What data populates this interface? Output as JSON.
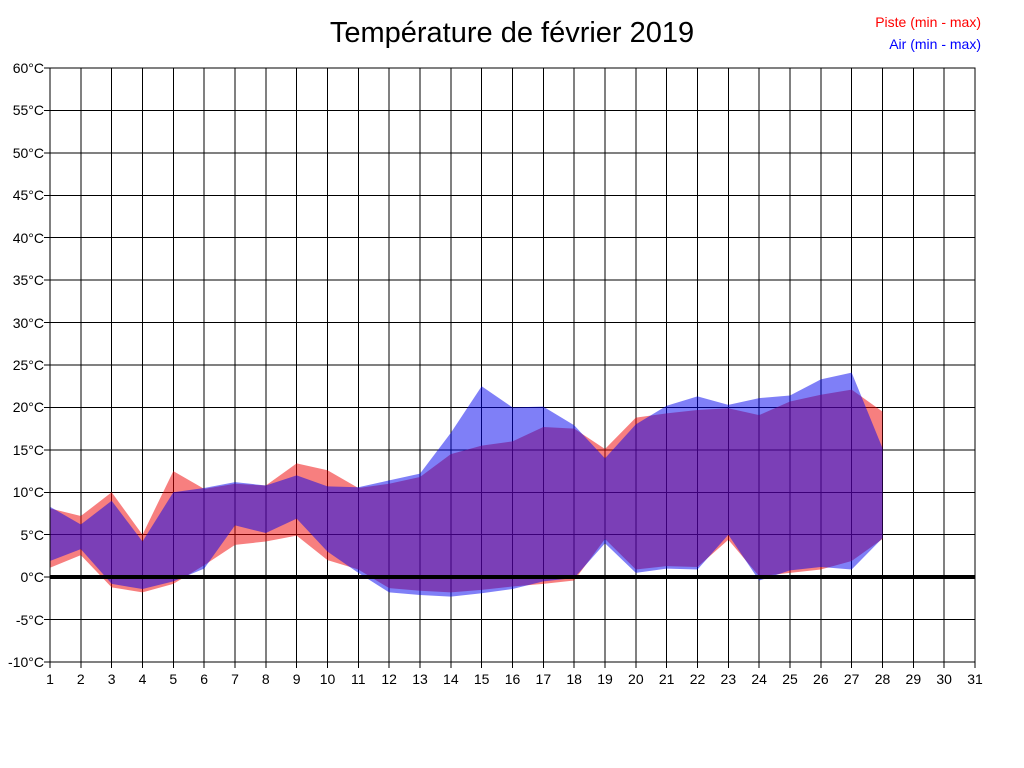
{
  "title": "Température de février 2019",
  "legend": {
    "piste_label": "Piste (min - max)",
    "air_label": "Air (min - max)"
  },
  "colors": {
    "piste_fill": "#f00000",
    "air_fill": "#0000f0",
    "piste_legend_text": "#ff0000",
    "air_legend_text": "#0000ff",
    "grid": "#000000",
    "zero_line": "#000000",
    "background": "#ffffff"
  },
  "chart_data": {
    "type": "area",
    "title": "Température de février 2019",
    "xlabel": "",
    "ylabel": "",
    "xlim": [
      1,
      31
    ],
    "ylim": [
      -10,
      60
    ],
    "x_ticks": [
      1,
      2,
      3,
      4,
      5,
      6,
      7,
      8,
      9,
      10,
      11,
      12,
      13,
      14,
      15,
      16,
      17,
      18,
      19,
      20,
      21,
      22,
      23,
      24,
      25,
      26,
      27,
      28,
      29,
      30,
      31
    ],
    "y_ticks": [
      -10,
      -5,
      0,
      5,
      10,
      15,
      20,
      25,
      30,
      35,
      40,
      45,
      50,
      55,
      60
    ],
    "y_tick_suffix": "°C",
    "grid": true,
    "zero_line": true,
    "legend_position": "top-right",
    "days": [
      1,
      2,
      3,
      4,
      5,
      6,
      7,
      8,
      9,
      10,
      11,
      12,
      13,
      14,
      15,
      16,
      17,
      18,
      19,
      20,
      21,
      22,
      23,
      24,
      25,
      26,
      27,
      28
    ],
    "series": [
      {
        "name": "Piste (min - max)",
        "fill": "#f00000",
        "opacity": 0.5,
        "min": [
          1.1,
          2.6,
          -1.2,
          -1.8,
          -0.8,
          1.4,
          3.8,
          4.2,
          4.9,
          2.0,
          0.9,
          -1.3,
          -1.6,
          -1.8,
          -1.5,
          -1.1,
          -0.8,
          -0.4,
          4.5,
          0.9,
          1.3,
          1.2,
          4.4,
          0.1,
          0.5,
          0.9,
          1.9,
          4.5
        ],
        "max": [
          8.1,
          7.2,
          10.0,
          5.0,
          12.5,
          10.4,
          11.0,
          10.8,
          13.4,
          12.6,
          10.5,
          11.0,
          11.8,
          14.5,
          15.5,
          16.0,
          17.7,
          17.5,
          15.1,
          18.8,
          19.3,
          19.7,
          19.9,
          19.1,
          20.7,
          21.5,
          22.1,
          19.5
        ]
      },
      {
        "name": "Air (min - max)",
        "fill": "#0000f0",
        "opacity": 0.5,
        "min": [
          1.9,
          3.3,
          -0.8,
          -1.4,
          -0.5,
          1.0,
          6.1,
          5.2,
          6.9,
          3.0,
          0.5,
          -1.8,
          -2.1,
          -2.3,
          -1.9,
          -1.4,
          -0.5,
          -0.1,
          4.0,
          0.5,
          1.0,
          0.9,
          5.0,
          -0.4,
          0.8,
          1.2,
          0.9,
          4.6
        ],
        "max": [
          8.3,
          6.2,
          9.0,
          4.2,
          10.0,
          10.5,
          11.2,
          10.8,
          12.0,
          10.7,
          10.6,
          11.4,
          12.2,
          17.0,
          22.5,
          20.0,
          20.1,
          17.9,
          14.0,
          18.0,
          20.2,
          21.3,
          20.3,
          21.1,
          21.4,
          23.3,
          24.1,
          15.2
        ]
      }
    ]
  }
}
